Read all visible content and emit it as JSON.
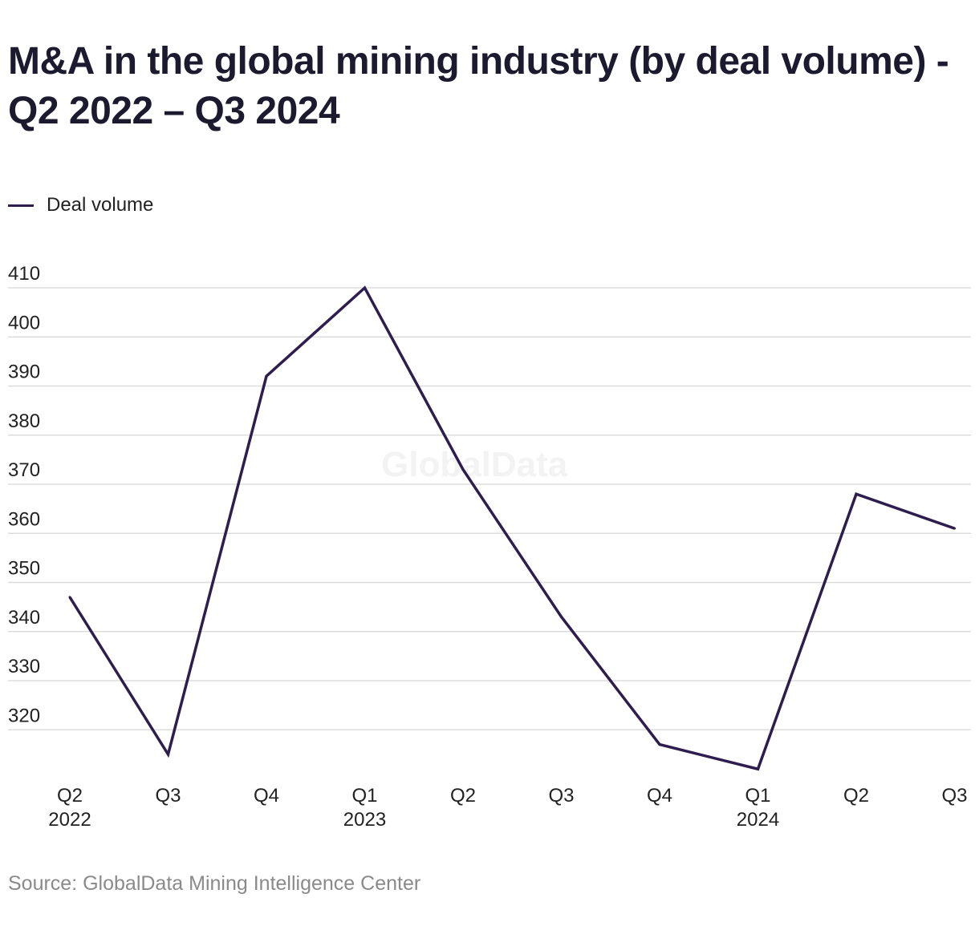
{
  "title": "M&A in the global mining industry (by deal volume) - Q2 2022 – Q3 2024",
  "watermark": "GlobalData",
  "source": "Source: GlobalData Mining Intelligence Center",
  "colors": {
    "line": "#2e1e4e",
    "grid": "#dddddd",
    "text": "#222222"
  },
  "chart_data": {
    "type": "line",
    "categories": [
      "Q2 2022",
      "Q3 2022",
      "Q4 2022",
      "Q1 2023",
      "Q2 2023",
      "Q3 2023",
      "Q4 2023",
      "Q1 2024",
      "Q2 2024",
      "Q3 2024"
    ],
    "x_tick_labels": [
      {
        "quarter": "Q2",
        "year": "2022"
      },
      {
        "quarter": "Q3",
        "year": ""
      },
      {
        "quarter": "Q4",
        "year": ""
      },
      {
        "quarter": "Q1",
        "year": "2023"
      },
      {
        "quarter": "Q2",
        "year": ""
      },
      {
        "quarter": "Q3",
        "year": ""
      },
      {
        "quarter": "Q4",
        "year": ""
      },
      {
        "quarter": "Q1",
        "year": "2024"
      },
      {
        "quarter": "Q2",
        "year": ""
      },
      {
        "quarter": "Q3",
        "year": ""
      }
    ],
    "series": [
      {
        "name": "Deal volume",
        "values": [
          347,
          315,
          392,
          410,
          373,
          343,
          317,
          312,
          368,
          361
        ]
      }
    ],
    "y_ticks": [
      320,
      330,
      340,
      350,
      360,
      370,
      380,
      390,
      400,
      410
    ],
    "ylim": [
      310,
      410
    ],
    "grid": true,
    "legend": "top-left"
  }
}
